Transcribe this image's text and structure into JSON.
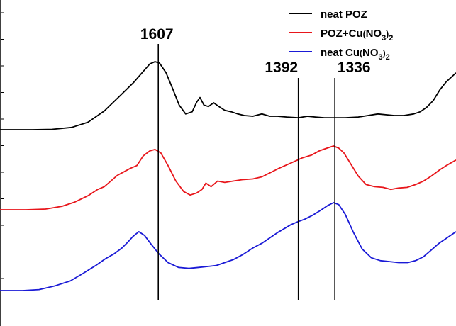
{
  "chart_data": {
    "type": "line",
    "title": "",
    "xlabel": "",
    "ylabel": "",
    "x_reversed": true,
    "xlim": [
      1850,
      1150
    ],
    "annotations": [
      {
        "label": "1607",
        "x": 1607
      },
      {
        "label": "1392",
        "x": 1392
      },
      {
        "label": "1336",
        "x": 1336
      }
    ],
    "legend": {
      "placement": "top-right",
      "entries": [
        {
          "text": "neat POZ",
          "color": "#000000"
        },
        {
          "text": "POZ+Cu(NO3)2",
          "color": "#e8161b"
        },
        {
          "text": "neat Cu(NO3)2",
          "color": "#1a1ad6"
        }
      ]
    },
    "series": [
      {
        "name": "neat POZ",
        "color": "#000000",
        "points": [
          [
            1850,
            0.09
          ],
          [
            1800,
            0.09
          ],
          [
            1770,
            0.095
          ],
          [
            1740,
            0.12
          ],
          [
            1715,
            0.19
          ],
          [
            1690,
            0.34
          ],
          [
            1665,
            0.55
          ],
          [
            1645,
            0.72
          ],
          [
            1630,
            0.87
          ],
          [
            1620,
            0.97
          ],
          [
            1612,
            1.0
          ],
          [
            1605,
            0.98
          ],
          [
            1595,
            0.85
          ],
          [
            1585,
            0.64
          ],
          [
            1575,
            0.42
          ],
          [
            1565,
            0.3
          ],
          [
            1555,
            0.33
          ],
          [
            1548,
            0.46
          ],
          [
            1543,
            0.52
          ],
          [
            1537,
            0.42
          ],
          [
            1530,
            0.4
          ],
          [
            1522,
            0.45
          ],
          [
            1514,
            0.4
          ],
          [
            1505,
            0.35
          ],
          [
            1495,
            0.33
          ],
          [
            1485,
            0.3
          ],
          [
            1475,
            0.28
          ],
          [
            1462,
            0.27
          ],
          [
            1448,
            0.3
          ],
          [
            1436,
            0.27
          ],
          [
            1424,
            0.27
          ],
          [
            1410,
            0.26
          ],
          [
            1392,
            0.25
          ],
          [
            1378,
            0.27
          ],
          [
            1366,
            0.26
          ],
          [
            1352,
            0.25
          ],
          [
            1336,
            0.25
          ],
          [
            1320,
            0.25
          ],
          [
            1300,
            0.26
          ],
          [
            1285,
            0.28
          ],
          [
            1270,
            0.3
          ],
          [
            1258,
            0.29
          ],
          [
            1245,
            0.28
          ],
          [
            1230,
            0.28
          ],
          [
            1215,
            0.3
          ],
          [
            1205,
            0.33
          ],
          [
            1195,
            0.39
          ],
          [
            1185,
            0.48
          ],
          [
            1175,
            0.62
          ],
          [
            1165,
            0.73
          ],
          [
            1150,
            0.85
          ]
        ]
      },
      {
        "name": "POZ+Cu(NO3)2",
        "color": "#e8161b",
        "points": [
          [
            1850,
            0.09
          ],
          [
            1810,
            0.09
          ],
          [
            1780,
            0.1
          ],
          [
            1755,
            0.14
          ],
          [
            1735,
            0.2
          ],
          [
            1715,
            0.29
          ],
          [
            1700,
            0.38
          ],
          [
            1690,
            0.42
          ],
          [
            1680,
            0.5
          ],
          [
            1670,
            0.58
          ],
          [
            1660,
            0.63
          ],
          [
            1650,
            0.68
          ],
          [
            1640,
            0.72
          ],
          [
            1630,
            0.86
          ],
          [
            1620,
            0.93
          ],
          [
            1612,
            0.95
          ],
          [
            1603,
            0.9
          ],
          [
            1592,
            0.72
          ],
          [
            1580,
            0.5
          ],
          [
            1568,
            0.35
          ],
          [
            1558,
            0.3
          ],
          [
            1548,
            0.33
          ],
          [
            1540,
            0.38
          ],
          [
            1534,
            0.47
          ],
          [
            1526,
            0.42
          ],
          [
            1516,
            0.5
          ],
          [
            1505,
            0.48
          ],
          [
            1492,
            0.5
          ],
          [
            1478,
            0.52
          ],
          [
            1462,
            0.53
          ],
          [
            1448,
            0.56
          ],
          [
            1435,
            0.62
          ],
          [
            1422,
            0.68
          ],
          [
            1410,
            0.73
          ],
          [
            1398,
            0.78
          ],
          [
            1386,
            0.83
          ],
          [
            1372,
            0.87
          ],
          [
            1360,
            0.93
          ],
          [
            1348,
            0.97
          ],
          [
            1338,
            1.0
          ],
          [
            1330,
            0.97
          ],
          [
            1322,
            0.9
          ],
          [
            1312,
            0.75
          ],
          [
            1300,
            0.57
          ],
          [
            1288,
            0.45
          ],
          [
            1275,
            0.42
          ],
          [
            1262,
            0.41
          ],
          [
            1250,
            0.38
          ],
          [
            1238,
            0.4
          ],
          [
            1225,
            0.41
          ],
          [
            1212,
            0.45
          ],
          [
            1200,
            0.5
          ],
          [
            1188,
            0.57
          ],
          [
            1175,
            0.66
          ],
          [
            1165,
            0.72
          ],
          [
            1150,
            0.8
          ]
        ]
      },
      {
        "name": "neat Cu(NO3)2",
        "color": "#1a1ad6",
        "points": [
          [
            1850,
            0.09
          ],
          [
            1815,
            0.09
          ],
          [
            1790,
            0.1
          ],
          [
            1765,
            0.14
          ],
          [
            1742,
            0.19
          ],
          [
            1722,
            0.27
          ],
          [
            1703,
            0.35
          ],
          [
            1688,
            0.42
          ],
          [
            1675,
            0.47
          ],
          [
            1663,
            0.53
          ],
          [
            1654,
            0.59
          ],
          [
            1646,
            0.65
          ],
          [
            1637,
            0.7
          ],
          [
            1628,
            0.66
          ],
          [
            1618,
            0.57
          ],
          [
            1606,
            0.47
          ],
          [
            1592,
            0.38
          ],
          [
            1576,
            0.33
          ],
          [
            1560,
            0.32
          ],
          [
            1545,
            0.33
          ],
          [
            1530,
            0.34
          ],
          [
            1518,
            0.35
          ],
          [
            1505,
            0.38
          ],
          [
            1492,
            0.41
          ],
          [
            1478,
            0.46
          ],
          [
            1462,
            0.53
          ],
          [
            1448,
            0.58
          ],
          [
            1435,
            0.64
          ],
          [
            1424,
            0.69
          ],
          [
            1414,
            0.73
          ],
          [
            1404,
            0.77
          ],
          [
            1394,
            0.8
          ],
          [
            1382,
            0.83
          ],
          [
            1370,
            0.87
          ],
          [
            1358,
            0.92
          ],
          [
            1347,
            0.97
          ],
          [
            1338,
            1.0
          ],
          [
            1330,
            0.98
          ],
          [
            1320,
            0.88
          ],
          [
            1308,
            0.7
          ],
          [
            1294,
            0.52
          ],
          [
            1280,
            0.43
          ],
          [
            1266,
            0.4
          ],
          [
            1252,
            0.39
          ],
          [
            1238,
            0.38
          ],
          [
            1224,
            0.38
          ],
          [
            1212,
            0.4
          ],
          [
            1200,
            0.44
          ],
          [
            1188,
            0.51
          ],
          [
            1176,
            0.58
          ],
          [
            1165,
            0.63
          ],
          [
            1150,
            0.7
          ]
        ]
      }
    ]
  }
}
